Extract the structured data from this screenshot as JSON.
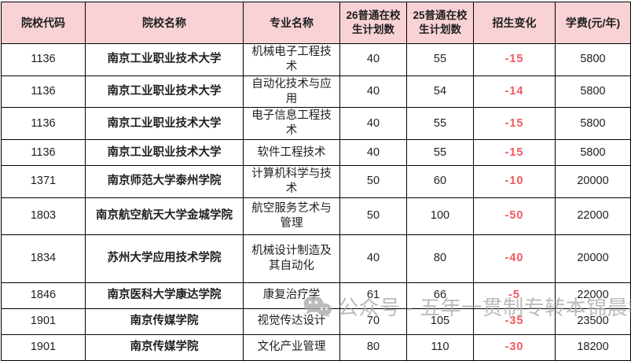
{
  "table": {
    "columns": [
      {
        "key": "code",
        "label": "院校代码"
      },
      {
        "key": "school",
        "label": "院校名称"
      },
      {
        "key": "major",
        "label": "专业名称"
      },
      {
        "key": "plan26",
        "label": "26普通在校生计划数"
      },
      {
        "key": "plan25",
        "label": "25普通在校生计划数"
      },
      {
        "key": "change",
        "label": "招生变化"
      },
      {
        "key": "fee",
        "label": "学费(元/年)"
      }
    ],
    "rows": [
      [
        "1136",
        "南京工业职业技术大学",
        "机械电子工程技术",
        "40",
        "55",
        "-15",
        "5800"
      ],
      [
        "1136",
        "南京工业职业技术大学",
        "自动化技术与应用",
        "40",
        "54",
        "-14",
        "5800"
      ],
      [
        "1136",
        "南京工业职业技术大学",
        "电子信息工程技术",
        "40",
        "55",
        "-15",
        "5800"
      ],
      [
        "1136",
        "南京工业职业技术大学",
        "软件工程技术",
        "40",
        "55",
        "-15",
        "5800"
      ],
      [
        "1371",
        "南京师范大学泰州学院",
        "计算机科学与技术",
        "50",
        "60",
        "-10",
        "20000"
      ],
      [
        "1803",
        "南京航空航天大学金城学院",
        "航空服务艺术与管理",
        "50",
        "100",
        "-50",
        "22000"
      ],
      [
        "1834",
        "苏州大学应用技术学院",
        "机械设计制造及其自动化",
        "40",
        "80",
        "-40",
        "20000"
      ],
      [
        "1846",
        "南京医科大学康达学院",
        "康复治疗学",
        "61",
        "66",
        "-5",
        "22000"
      ],
      [
        "1901",
        "南京传媒学院",
        "视觉传达设计",
        "70",
        "105",
        "-35",
        "23500"
      ],
      [
        "1901",
        "南京传媒学院",
        "文化产业管理",
        "80",
        "110",
        "-30",
        "18200"
      ]
    ]
  },
  "watermark": {
    "icon": "wechat-icon",
    "text": "公众号 · 五年一贯制专转本锦晨教育"
  },
  "colors": {
    "header_bg": "#F8D2D5",
    "change_negative": "#F05A5F",
    "text": "#1F1F1F",
    "border": "#000000",
    "watermark": "#A8A8A8"
  }
}
